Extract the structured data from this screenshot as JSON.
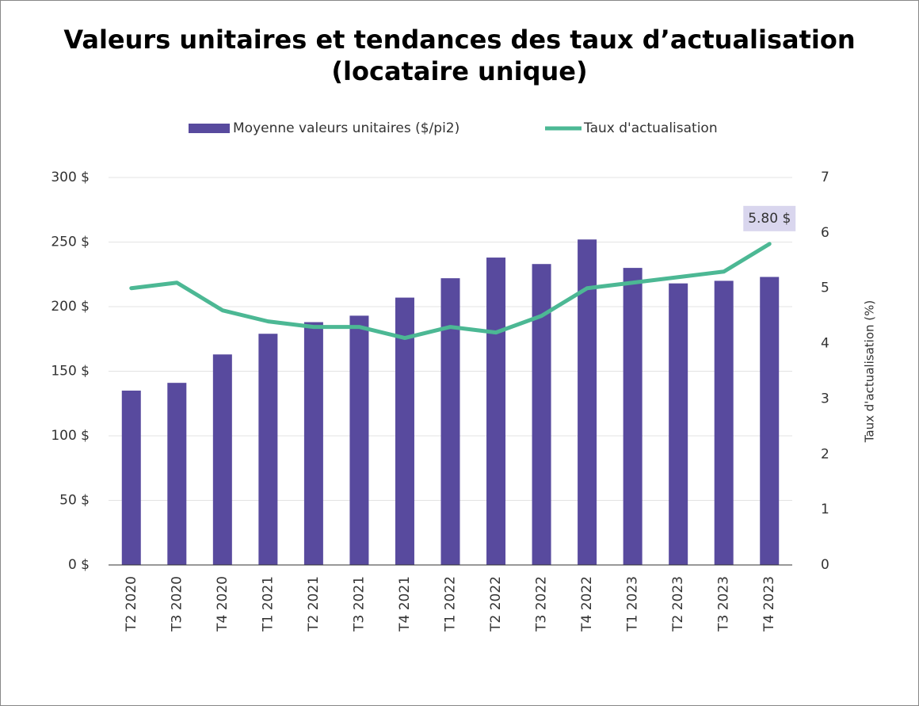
{
  "chart_data": {
    "type": "bar",
    "title": "Valeurs unitaires et tendances des taux d’actualisation (locataire unique)",
    "categories": [
      "T2 2020",
      "T3 2020",
      "T4 2020",
      "T1 2021",
      "T2 2021",
      "T3 2021",
      "T4 2021",
      "T1 2022",
      "T2 2022",
      "T3 2022",
      "T4 2022",
      "T1 2023",
      "T2 2023",
      "T3 2023",
      "T4 2023"
    ],
    "series": [
      {
        "name": "Moyenne valeurs unitaires ($/pi2)",
        "type": "bar",
        "color": "#584a9e",
        "axis": "y",
        "values": [
          135,
          141,
          163,
          179,
          188,
          193,
          207,
          222,
          238,
          233,
          252,
          230,
          218,
          220,
          223
        ]
      },
      {
        "name": "Taux d'actualisation",
        "type": "line",
        "color": "#4cb894",
        "axis": "y2",
        "values": [
          5.0,
          5.1,
          4.6,
          4.4,
          4.3,
          4.3,
          4.1,
          4.3,
          4.2,
          4.5,
          5.0,
          5.1,
          5.2,
          5.3,
          5.8
        ],
        "value_labels": [
          null,
          null,
          null,
          null,
          null,
          null,
          null,
          null,
          null,
          null,
          null,
          null,
          null,
          null,
          "5.80 $"
        ]
      }
    ],
    "ylim": [
      0,
      300
    ],
    "yticks": [
      {
        "value": 0,
        "label": "0 $"
      },
      {
        "value": 50,
        "label": "50 $"
      },
      {
        "value": 100,
        "label": "100 $"
      },
      {
        "value": 150,
        "label": "150 $"
      },
      {
        "value": 200,
        "label": "200 $"
      },
      {
        "value": 250,
        "label": "250 $"
      },
      {
        "value": 300,
        "label": "300 $"
      }
    ],
    "y2lim": [
      0,
      7
    ],
    "y2ticks": [
      0,
      1,
      2,
      3,
      4,
      5,
      6,
      7
    ],
    "y2label": "Taux d'actualisation (%)",
    "grid": true,
    "legend": "top"
  }
}
